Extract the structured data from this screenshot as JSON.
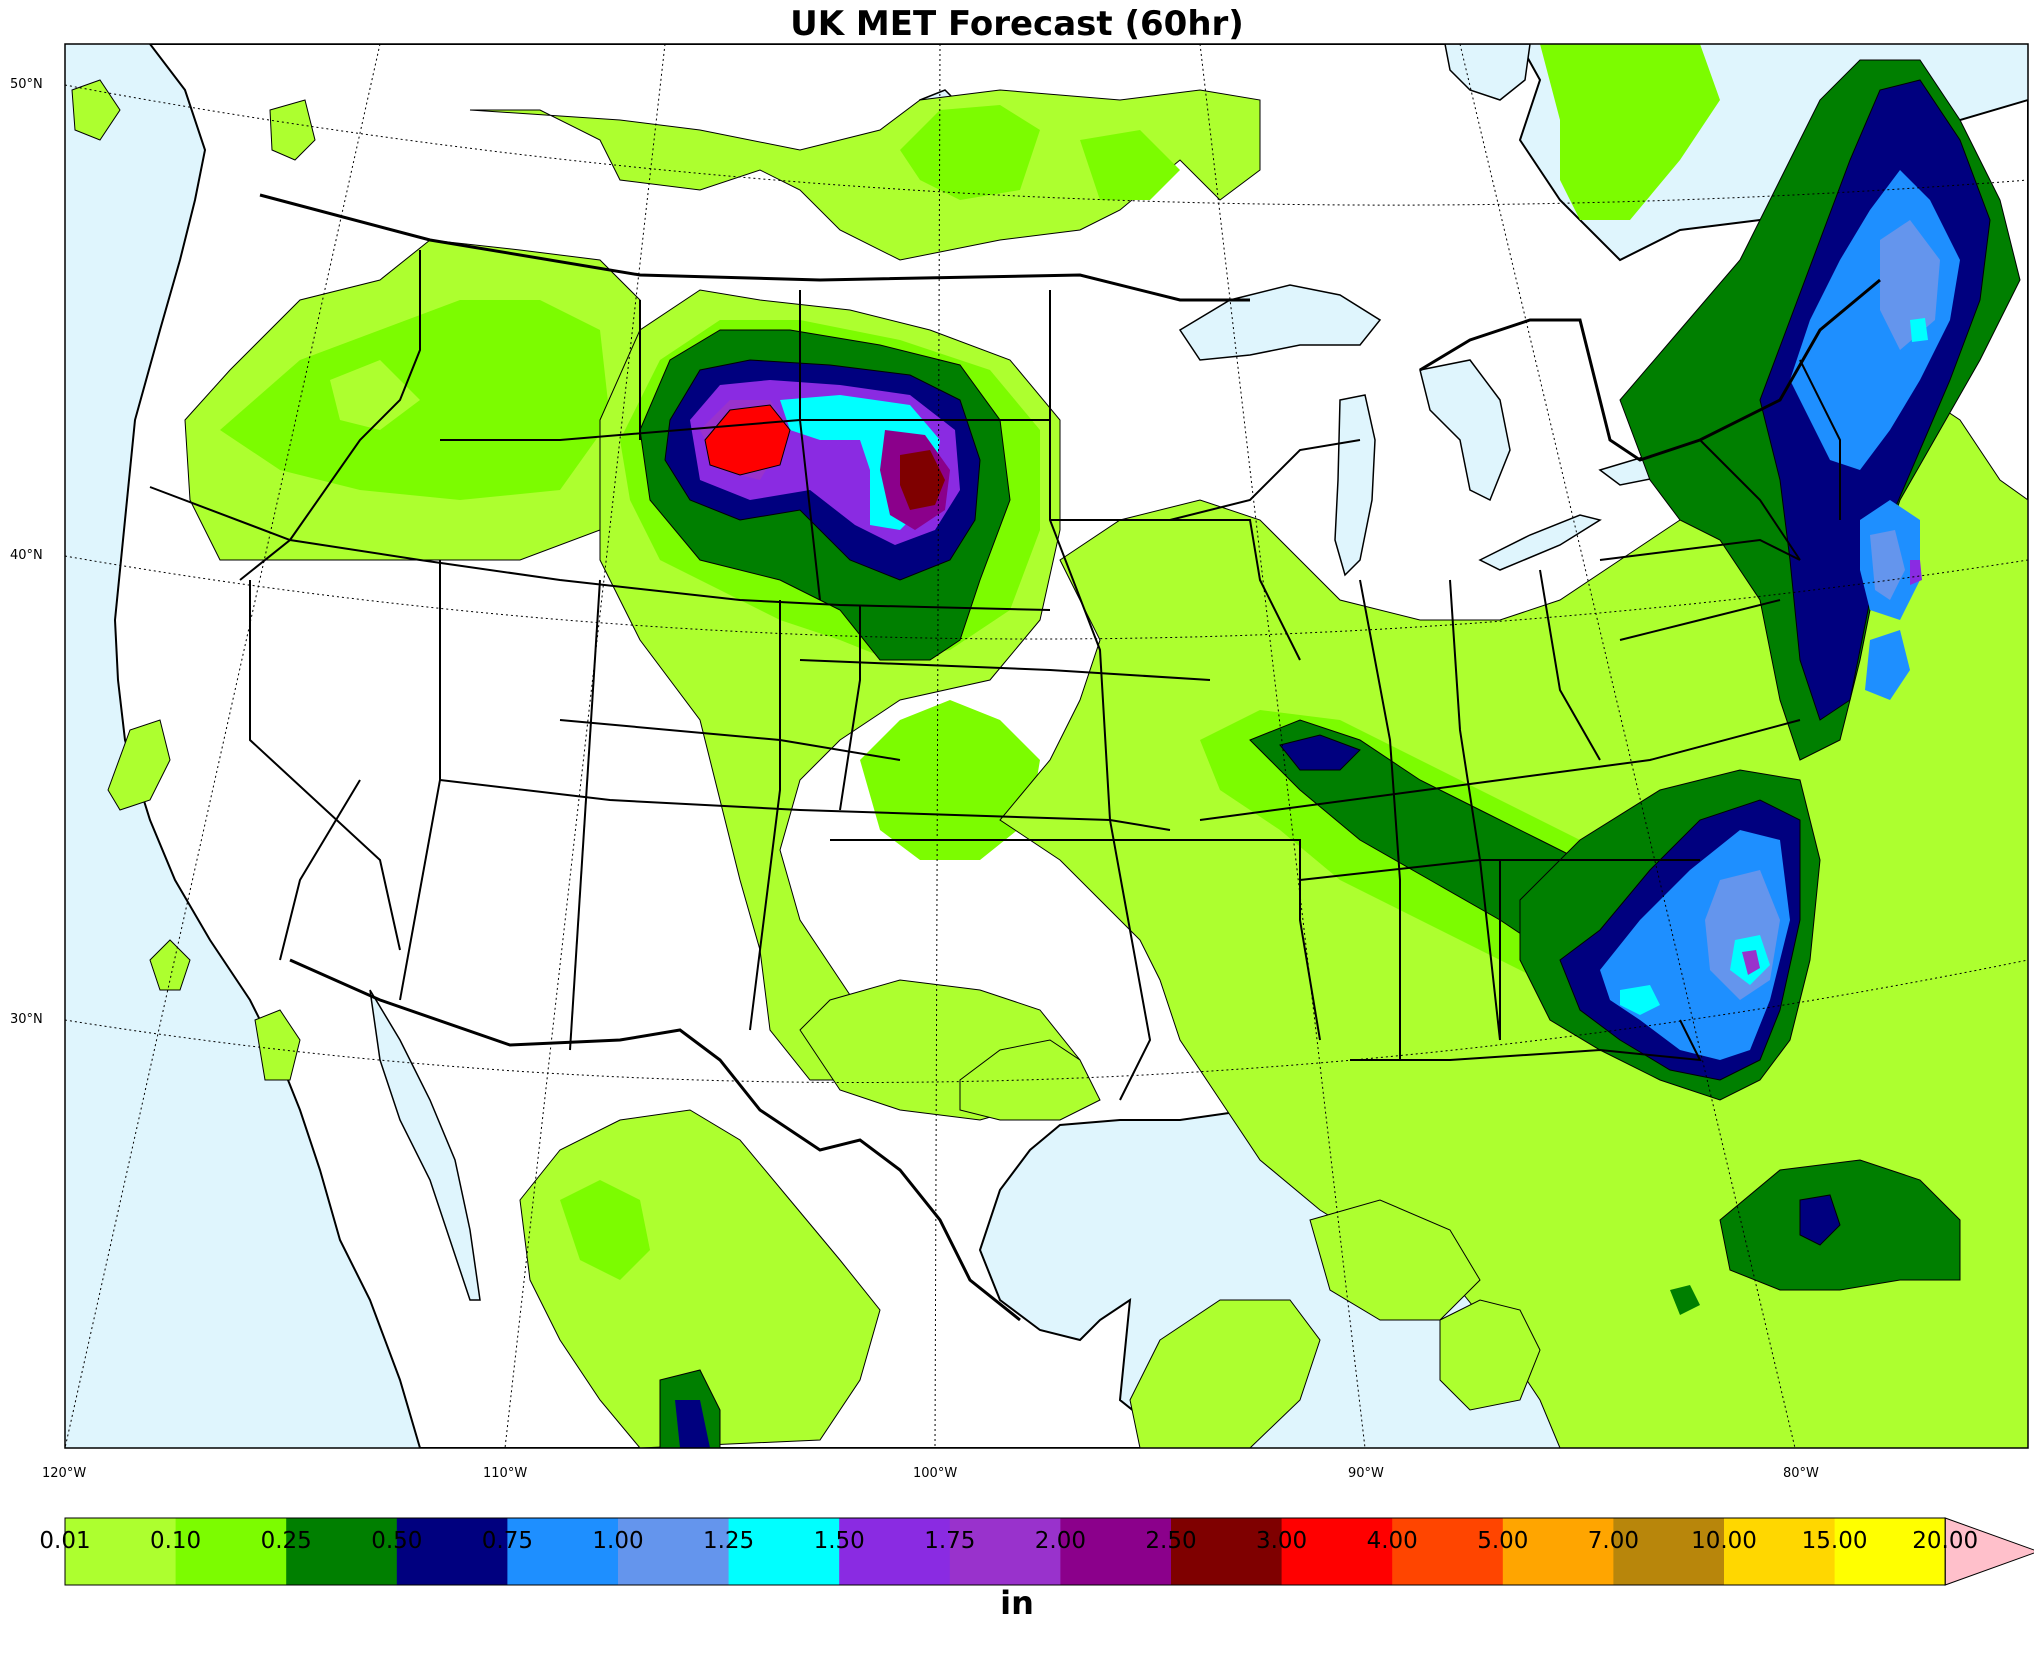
{
  "title": "UK MET Forecast (60hr)",
  "lat_labels": [
    "50°N",
    "40°N",
    "30°N"
  ],
  "lon_labels": [
    "120°W",
    "110°W",
    "100°W",
    "90°W",
    "80°W"
  ],
  "colorbar": {
    "unit": "in",
    "ticks": [
      "0.01",
      "0.10",
      "0.25",
      "0.50",
      "0.75",
      "1.00",
      "1.25",
      "1.50",
      "1.75",
      "2.00",
      "2.50",
      "3.00",
      "4.00",
      "5.00",
      "7.00",
      "10.00",
      "15.00",
      "20.00"
    ],
    "colors": [
      "#adff2f",
      "#7cfc00",
      "#007f00",
      "#00007f",
      "#1e8fff",
      "#6495ed",
      "#00ffff",
      "#8a2be2",
      "#9932cc",
      "#8b008b",
      "#7f0000",
      "#ff0000",
      "#ff4500",
      "#ffa500",
      "#b8860b",
      "#ffd700",
      "#ffff00"
    ],
    "extend_color": "#ffc0cb"
  },
  "colors": {
    "water": "#dff5fd",
    "land": "#ffffff"
  }
}
